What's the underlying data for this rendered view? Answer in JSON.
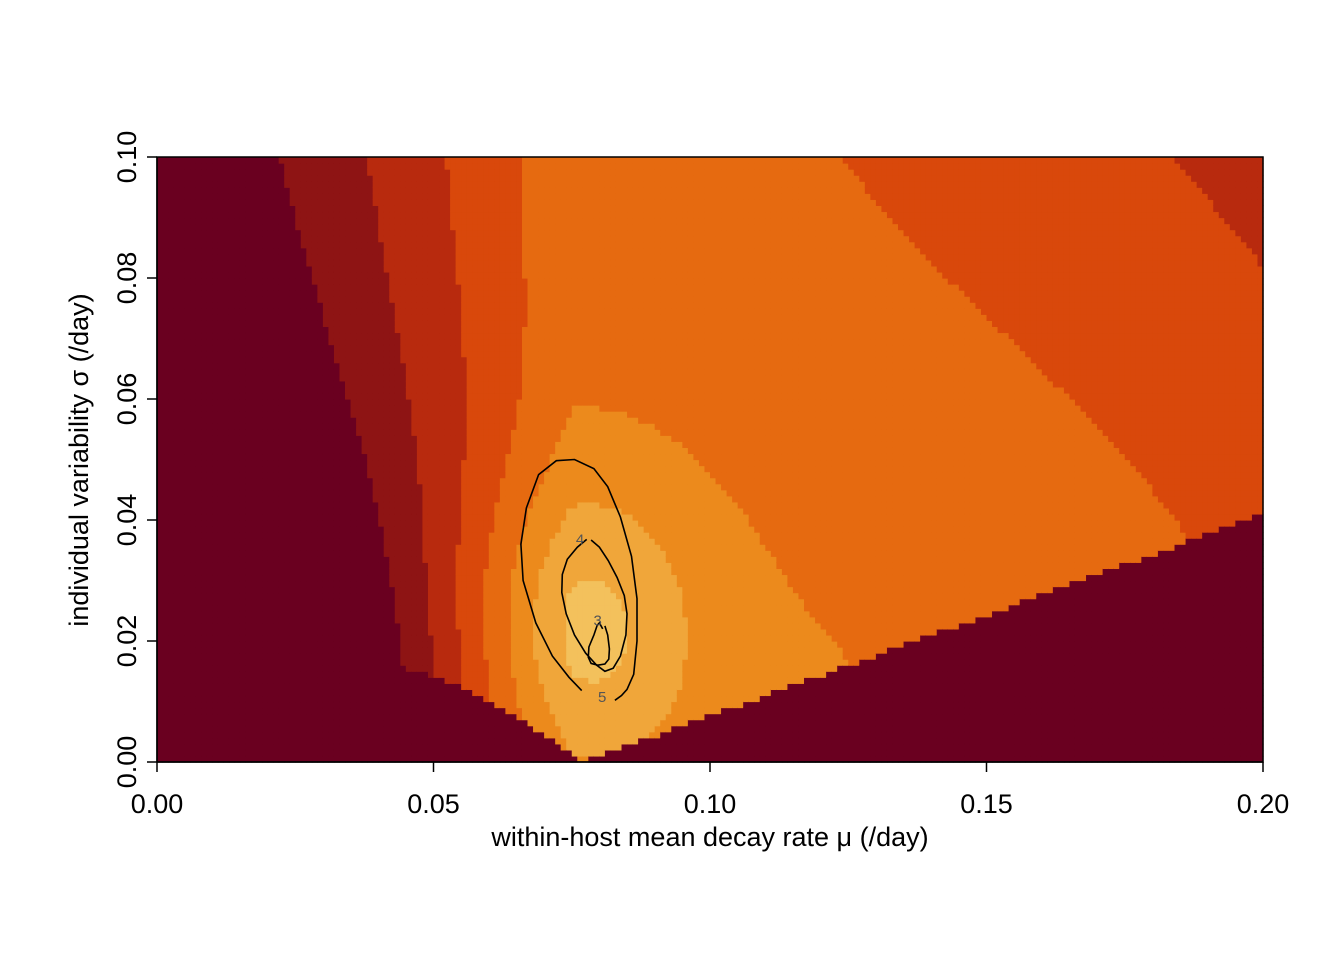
{
  "chart_data": {
    "type": "heatmap",
    "title": "",
    "xlabel": "within-host mean decay rate μ (/day)",
    "ylabel": "individual variability σ (/day)",
    "xlim": [
      0.0,
      0.2
    ],
    "ylim": [
      0.0,
      0.1
    ],
    "x_ticks": [
      "0.00",
      "0.05",
      "0.10",
      "0.15",
      "0.20"
    ],
    "y_ticks": [
      "0.00",
      "0.02",
      "0.04",
      "0.06",
      "0.08",
      "0.10"
    ],
    "x_tick_values": [
      0.0,
      0.05,
      0.1,
      0.15,
      0.2
    ],
    "y_tick_values": [
      0.0,
      0.02,
      0.04,
      0.06,
      0.08,
      0.1
    ],
    "grid": false,
    "legend": "none",
    "palette": [
      "#fff5b0",
      "#fbe89a",
      "#f6d77c",
      "#f3c15c",
      "#f0a63a",
      "#ec8a1c",
      "#e66a10",
      "#d9480b",
      "#b82a0e",
      "#8e1414",
      "#6a0020"
    ],
    "contours": [
      {
        "label": "3",
        "label_at": [
          0.0797,
          0.0232
        ],
        "points": [
          [
            0.0806,
            0.022
          ],
          [
            0.08,
            0.023
          ],
          [
            0.0796,
            0.0226
          ],
          [
            0.079,
            0.021
          ],
          [
            0.0781,
            0.019
          ],
          [
            0.078,
            0.0173
          ],
          [
            0.0785,
            0.0163
          ],
          [
            0.0797,
            0.016
          ],
          [
            0.081,
            0.0162
          ],
          [
            0.0817,
            0.017
          ],
          [
            0.0818,
            0.0187
          ],
          [
            0.0815,
            0.021
          ],
          [
            0.081,
            0.0225
          ]
        ]
      },
      {
        "label": "4",
        "label_at": [
          0.0765,
          0.0366
        ],
        "points": [
          [
            0.0777,
            0.0368
          ],
          [
            0.076,
            0.0355
          ],
          [
            0.0742,
            0.0335
          ],
          [
            0.0733,
            0.031
          ],
          [
            0.0732,
            0.028
          ],
          [
            0.074,
            0.0245
          ],
          [
            0.0755,
            0.021
          ],
          [
            0.0775,
            0.018
          ],
          [
            0.0795,
            0.016
          ],
          [
            0.081,
            0.015
          ],
          [
            0.0825,
            0.0155
          ],
          [
            0.0838,
            0.0175
          ],
          [
            0.0848,
            0.021
          ],
          [
            0.085,
            0.0245
          ],
          [
            0.0845,
            0.0275
          ],
          [
            0.0832,
            0.0305
          ],
          [
            0.0816,
            0.0333
          ],
          [
            0.08,
            0.0355
          ],
          [
            0.0785,
            0.0367
          ]
        ]
      },
      {
        "label": "5",
        "label_at": [
          0.0805,
          0.0106
        ],
        "points": [
          [
            0.0768,
            0.0118
          ],
          [
            0.0745,
            0.014
          ],
          [
            0.0715,
            0.0175
          ],
          [
            0.0685,
            0.023
          ],
          [
            0.0662,
            0.03
          ],
          [
            0.0658,
            0.036
          ],
          [
            0.0668,
            0.042
          ],
          [
            0.069,
            0.0475
          ],
          [
            0.0722,
            0.0498
          ],
          [
            0.0755,
            0.05
          ],
          [
            0.079,
            0.0485
          ],
          [
            0.0815,
            0.0455
          ],
          [
            0.0838,
            0.0405
          ],
          [
            0.0858,
            0.034
          ],
          [
            0.0868,
            0.027
          ],
          [
            0.0868,
            0.02
          ],
          [
            0.0862,
            0.0145
          ],
          [
            0.085,
            0.012
          ],
          [
            0.084,
            0.011
          ],
          [
            0.0828,
            0.0102
          ]
        ]
      }
    ]
  }
}
